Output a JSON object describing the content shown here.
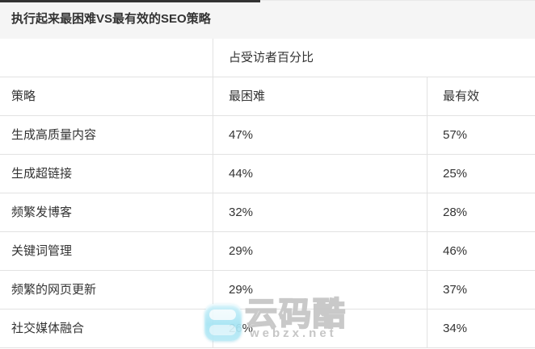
{
  "header": {
    "title": "执行起来最困难VS最有效的SEO策略"
  },
  "chart_data": {
    "type": "table",
    "title": "执行起来最困难VS最有效的SEO策略",
    "span_header": "占受访者百分比",
    "columns": [
      "策略",
      "最困难",
      "最有效"
    ],
    "categories": [
      "生成高质量内容",
      "生成超链接",
      "频繁发博客",
      "关键词管理",
      "频繁的网页更新",
      "社交媒体融合"
    ],
    "series": [
      {
        "name": "最困难",
        "values": [
          47,
          44,
          32,
          29,
          29,
          26
        ]
      },
      {
        "name": "最有效",
        "values": [
          57,
          25,
          28,
          46,
          37,
          34
        ]
      }
    ],
    "rows": [
      [
        "生成高质量内容",
        "47%",
        "57%"
      ],
      [
        "生成超链接",
        "44%",
        "25%"
      ],
      [
        "频繁发博客",
        "32%",
        "28%"
      ],
      [
        "关键词管理",
        "29%",
        "46%"
      ],
      [
        "频繁的网页更新",
        "29%",
        "37%"
      ],
      [
        "社交媒体融合",
        "26%",
        "34%"
      ]
    ]
  },
  "watermark": {
    "brand": "云码酷",
    "site": "webzx.net",
    "icon": "cloud-chat-icon"
  },
  "colors": {
    "accent_dark": "#333333",
    "title_bg": "#f5f5f5",
    "border": "#e2e2e2",
    "text": "#333333",
    "watermark_cyan": "#a5e4f4",
    "watermark_gray": "#c5c5c5"
  }
}
